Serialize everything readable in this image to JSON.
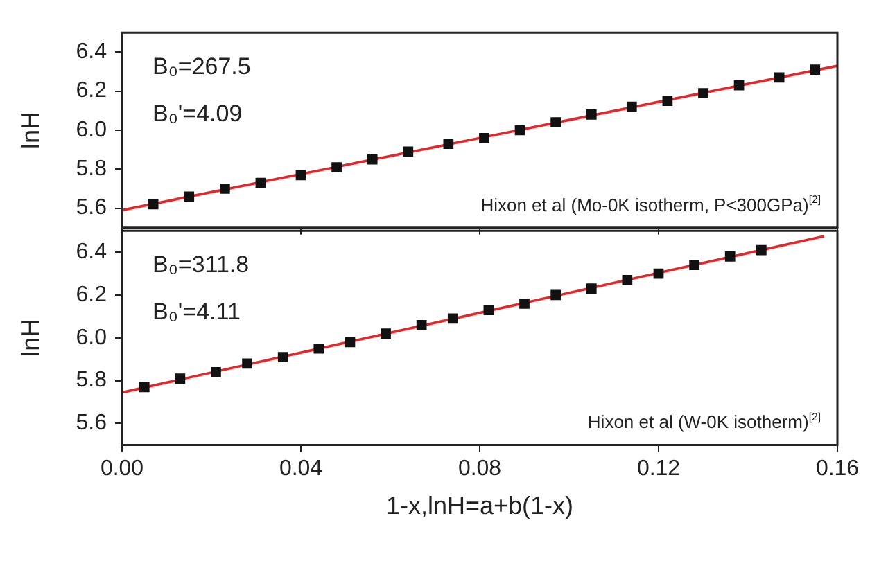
{
  "chart_data": [
    {
      "type": "scatter",
      "ylabel": "lnH",
      "xlim": [
        0,
        0.16
      ],
      "ylim": [
        5.5,
        6.5
      ],
      "xticks": [
        0,
        0.04,
        0.08,
        0.12,
        0.16
      ],
      "yticks": [
        5.6,
        5.8,
        {
          "value": 6,
          "label": "6.0"
        },
        6.2,
        6.4
      ],
      "tick_labels": "y",
      "grid": false,
      "x": [
        0.007,
        0.015,
        0.023,
        0.031,
        0.04,
        0.048,
        0.056,
        0.064,
        0.073,
        0.081,
        0.089,
        0.097,
        0.105,
        0.114,
        0.122,
        0.13,
        0.138,
        0.147,
        0.155
      ],
      "series": [
        {
          "marker": "square",
          "color": "#111111",
          "values": [
            5.62,
            5.66,
            5.7,
            5.73,
            5.77,
            5.81,
            5.85,
            5.89,
            5.93,
            5.96,
            6.0,
            6.04,
            6.08,
            6.12,
            6.15,
            6.19,
            6.23,
            6.27,
            6.31
          ]
        },
        {
          "type": "line",
          "marker": "none",
          "color": "#e8262a",
          "x": [
            0,
            0.16
          ],
          "values": [
            5.59,
            6.33
          ]
        }
      ],
      "annotations": [
        "B₀=267.5",
        "B₀'=4.09",
        "Hixon et al (Mo-0K isotherm, P<300GPa)$^{[2]}$"
      ]
    },
    {
      "type": "scatter",
      "ylabel": "lnH",
      "xlabel": "1-x,lnH=a+b(1-x)",
      "xlim": [
        0,
        0.16
      ],
      "ylim": [
        5.5,
        6.5
      ],
      "xticks": [
        {
          "value": 0,
          "label": "0.00"
        },
        0.04,
        0.08,
        0.12,
        0.16
      ],
      "yticks": [
        5.6,
        5.8,
        {
          "value": 6,
          "label": "6.0"
        },
        6.2,
        6.4
      ],
      "grid": false,
      "x": [
        0.005,
        0.013,
        0.021,
        0.028,
        0.036,
        0.044,
        0.051,
        0.059,
        0.067,
        0.074,
        0.082,
        0.09,
        0.097,
        0.105,
        0.113,
        0.12,
        0.128,
        0.136,
        0.143
      ],
      "series": [
        {
          "marker": "square",
          "color": "#111111",
          "values": [
            5.77,
            5.81,
            5.84,
            5.88,
            5.91,
            5.95,
            5.98,
            6.02,
            6.06,
            6.09,
            6.13,
            6.16,
            6.2,
            6.23,
            6.27,
            6.3,
            6.34,
            6.38,
            6.41
          ]
        },
        {
          "type": "line",
          "marker": "none",
          "color": "#e8262a",
          "x": [
            0,
            0.157
          ],
          "values": [
            5.745,
            6.475
          ]
        }
      ],
      "annotations": [
        "B₀=311.8",
        "B₀'=4.11",
        "Hixon et al (W-0K isotherm)$^{[2]}$"
      ]
    }
  ]
}
